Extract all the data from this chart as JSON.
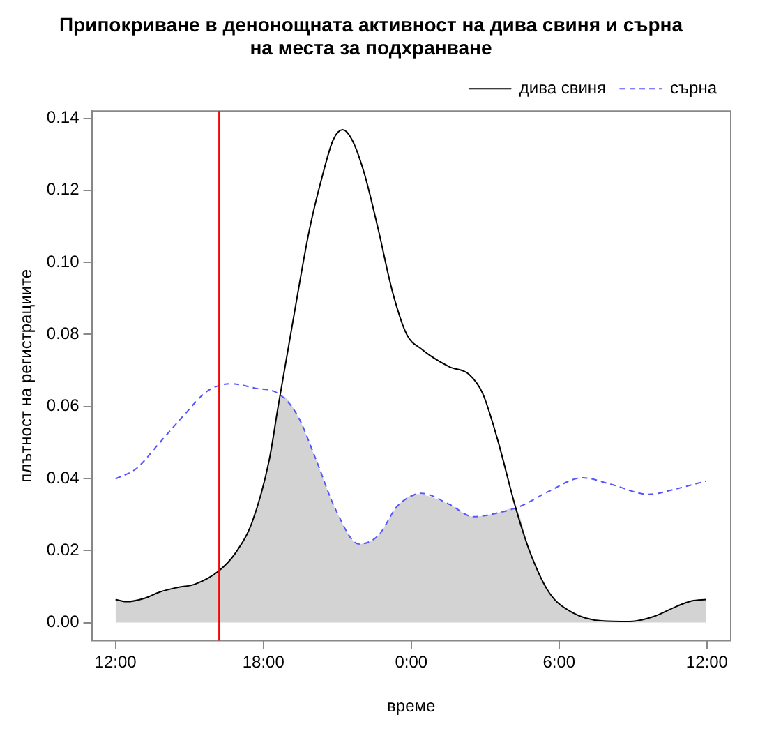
{
  "chart_data": {
    "type": "line",
    "title": "Припокриване в денонощната активност на дива свиня и сърна\nна места за подхранване",
    "xlabel": "време",
    "ylabel": "плътност на регистрациите",
    "xlim": [
      "--01-01T11:02",
      "--01-02T12:58"
    ],
    "ylim": [
      -0.005,
      0.142
    ],
    "xticks": [
      {
        "value": "--01-01T12:00",
        "label": "12:00"
      },
      {
        "value": "--01-01T18:00",
        "label": "18:00"
      },
      {
        "value": "--01-02T00:00",
        "label": "0:00"
      },
      {
        "value": "--01-02T06:00",
        "label": "6:00"
      },
      {
        "value": "--01-02T12:00",
        "label": "12:00"
      }
    ],
    "yticks": [
      {
        "value": 0,
        "label": "0.00"
      },
      {
        "value": 0.02,
        "label": "0.02"
      },
      {
        "value": 0.04,
        "label": "0.04"
      },
      {
        "value": 0.06,
        "label": "0.06"
      },
      {
        "value": 0.08,
        "label": "0.08"
      },
      {
        "value": 0.1,
        "label": "0.10"
      },
      {
        "value": 0.12,
        "label": "0.12"
      },
      {
        "value": 0.14,
        "label": "0.14"
      }
    ],
    "grid": false,
    "legend": "top right",
    "marker": "none",
    "ref_lines": [
      {
        "axis": "x",
        "value": "--01-01T16:12",
        "color": "#ff0000"
      }
    ],
    "series": [
      {
        "type": "area",
        "color": "#d3d3d3",
        "x": [
          "--01-01T12:00",
          "--01-01T12:26",
          "--01-01T13:12",
          "--01-01T14:28",
          "--01-01T15:14",
          "--01-01T16:12",
          "--01-01T16:52",
          "--01-01T17:33",
          "--01-01T18:14",
          "--01-01T18:36",
          "--01-01T18:45",
          "--01-01T19:23",
          "--01-01T20:09",
          "--01-01T20:55",
          "--01-01T21:53",
          "--01-01T22:40",
          "--01-01T23:26",
          "--01-02T00:12",
          "--01-02T01:33",
          "--01-02T02:31",
          "--01-02T03:29",
          "--01-02T04:12",
          "--01-02T04:50",
          "--01-02T05:36",
          "--01-02T06:34",
          "--01-02T07:43",
          "--01-02T08:53",
          "--01-02T09:51",
          "--01-02T10:48",
          "--01-02T11:23",
          "--01-02T11:58"
        ],
        "values": [
          0.0064,
          0.0058,
          0.0068,
          0.0097,
          0.0107,
          0.0144,
          0.0193,
          0.028,
          0.045,
          0.06,
          0.063,
          0.0575,
          0.045,
          0.0316,
          0.0218,
          0.0242,
          0.0323,
          0.0357,
          0.0328,
          0.0294,
          0.0304,
          0.0318,
          0.0193,
          0.0083,
          0.0027,
          0.0005,
          0.0003,
          0.0017,
          0.0046,
          0.006,
          0.0064
        ]
      },
      {
        "name": "дива свиня",
        "color": "#000000",
        "line_style": "solid",
        "x": [
          "--01-01T12:00",
          "--01-01T12:26",
          "--01-01T13:12",
          "--01-01T13:48",
          "--01-01T14:28",
          "--01-01T15:14",
          "--01-01T16:12",
          "--01-01T16:52",
          "--01-01T17:33",
          "--01-01T18:14",
          "--01-01T18:36",
          "--01-01T19:11",
          "--01-01T19:52",
          "--01-01T20:26",
          "--01-01T20:50",
          "--01-01T21:13",
          "--01-01T21:36",
          "--01-01T22:05",
          "--01-01T22:40",
          "--01-01T23:14",
          "--01-01T23:49",
          "--01-02T00:24",
          "--01-02T01:33",
          "--01-02T02:20",
          "--01-02T02:54",
          "--01-02T03:29",
          "--01-02T04:15",
          "--01-02T04:50",
          "--01-02T05:36",
          "--01-02T06:34",
          "--01-02T07:43",
          "--01-02T08:53",
          "--01-02T09:51",
          "--01-02T10:48",
          "--01-02T11:23",
          "--01-02T11:58"
        ],
        "values": [
          0.0064,
          0.0058,
          0.0068,
          0.0085,
          0.0097,
          0.0107,
          0.0144,
          0.0193,
          0.028,
          0.045,
          0.06,
          0.083,
          0.109,
          0.125,
          0.134,
          0.1368,
          0.134,
          0.125,
          0.109,
          0.092,
          0.08,
          0.076,
          0.071,
          0.069,
          0.0636,
          0.0513,
          0.0316,
          0.0193,
          0.0083,
          0.0027,
          0.0005,
          0.0003,
          0.0017,
          0.0046,
          0.006,
          0.0064
        ]
      },
      {
        "name": "сърна",
        "color": "#5555ff",
        "line_style": "dashed",
        "x": [
          "--01-01T12:00",
          "--01-01T12:50",
          "--01-01T13:48",
          "--01-01T14:46",
          "--01-01T15:43",
          "--01-01T16:41",
          "--01-01T17:39",
          "--01-01T18:36",
          "--01-01T19:23",
          "--01-01T20:09",
          "--01-01T20:55",
          "--01-01T21:53",
          "--01-01T22:40",
          "--01-01T23:26",
          "--01-02T00:12",
          "--01-02T00:24",
          "--01-02T01:33",
          "--01-02T02:31",
          "--01-02T03:29",
          "--01-02T04:26",
          "--01-02T05:36",
          "--01-02T06:57",
          "--01-02T08:06",
          "--01-02T09:38",
          "--01-02T10:48",
          "--01-02T11:58"
        ],
        "values": [
          0.0399,
          0.0427,
          0.05,
          0.0575,
          0.0642,
          0.0663,
          0.0651,
          0.0636,
          0.0575,
          0.045,
          0.0316,
          0.0218,
          0.0242,
          0.0323,
          0.0357,
          0.0359,
          0.0328,
          0.0294,
          0.0304,
          0.0323,
          0.0365,
          0.0402,
          0.0384,
          0.0356,
          0.0372,
          0.0393
        ]
      }
    ]
  }
}
